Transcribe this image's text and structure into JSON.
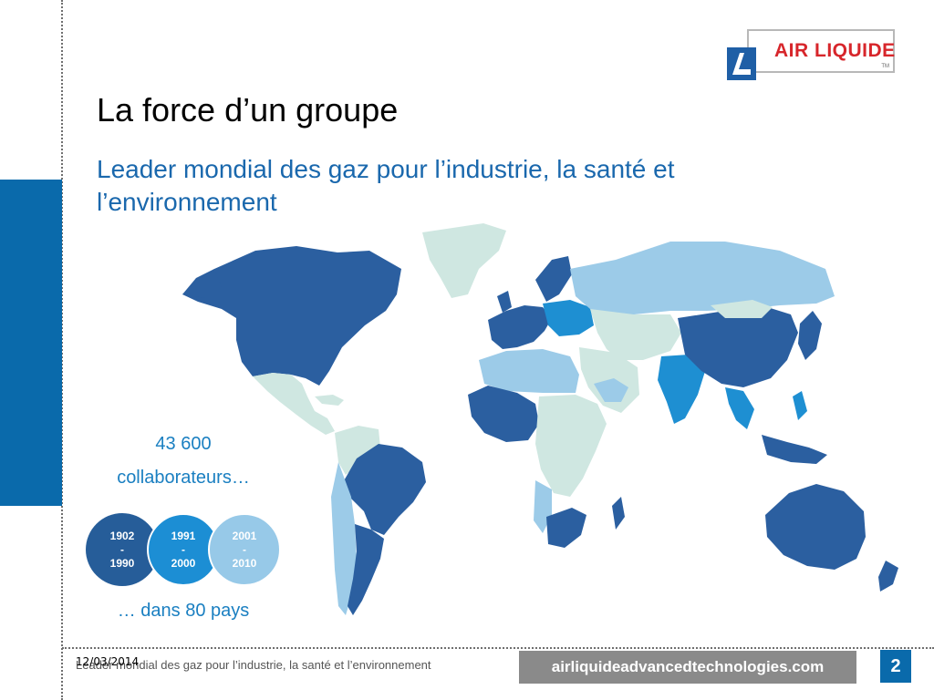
{
  "slide": {
    "title": "La force d’un groupe",
    "subtitle": "Leader mondial des gaz pour l’industrie, la santé et l’environnement"
  },
  "logo": {
    "text": "AIR LIQUIDE",
    "tm": "TM",
    "icon": "air-liquide-emblem"
  },
  "stats": {
    "employees_number": "43 600",
    "employees_label": "collaborateurs…",
    "countries": "… dans 80 pays"
  },
  "timeline": [
    {
      "start": "1902",
      "sep": "-",
      "end": "1990",
      "color": "#265d99"
    },
    {
      "start": "1991",
      "sep": "-",
      "end": "2000",
      "color": "#1c8ed4"
    },
    {
      "start": "2001",
      "sep": "-",
      "end": "2010",
      "color": "#97c9e8"
    }
  ],
  "map": {
    "colors": {
      "1902-1990": "#2b5fa0",
      "1991-2000": "#1e8fd2",
      "2001-2010": "#9ccbe8",
      "other": "#cfe7e1",
      "ocean": "#ffffff"
    }
  },
  "footer": {
    "date": "12/03/2014",
    "text": "Leader mondial des gaz pour l’industrie, la santé et l’environnement",
    "url": "airliquideadvancedtechnologies.com",
    "page": "2"
  },
  "colors": {
    "accent": "#0a6aab",
    "subtitle": "#1a68ad",
    "stat": "#1a7fc1"
  }
}
